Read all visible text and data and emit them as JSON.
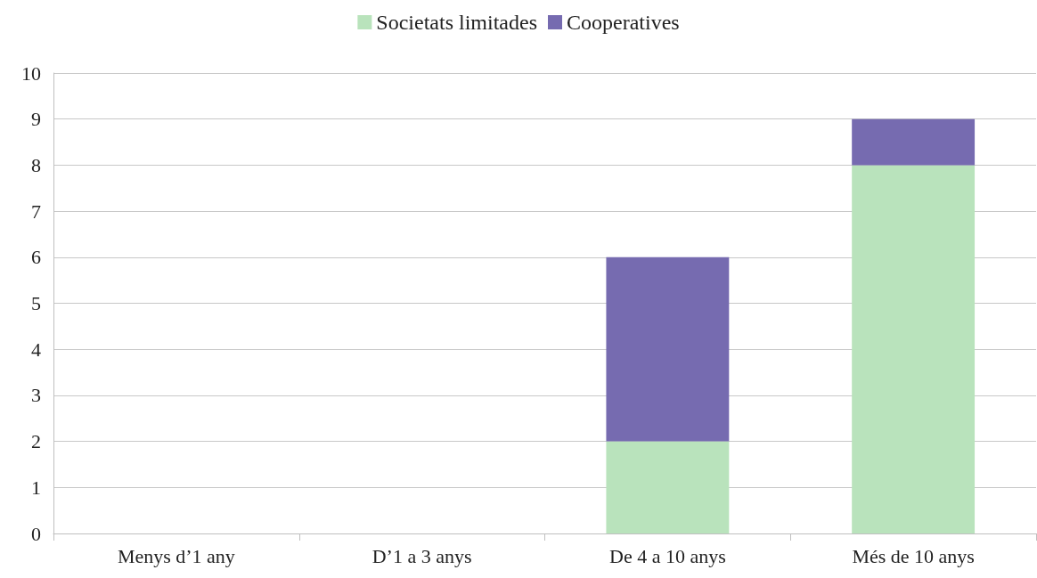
{
  "chart_data": {
    "type": "bar",
    "stacked": true,
    "categories": [
      "Menys d’1 any",
      "D’1 a 3 anys",
      "De 4 a 10 anys",
      "Més de 10 anys"
    ],
    "series": [
      {
        "name": "Societats limitades",
        "color": "#b9e3bc",
        "values": [
          0,
          0,
          2,
          8
        ]
      },
      {
        "name": "Cooperatives",
        "color": "#766bb0",
        "values": [
          0,
          0,
          4,
          1
        ]
      }
    ],
    "ylim": [
      0,
      10
    ],
    "yticks": [
      0,
      1,
      2,
      3,
      4,
      5,
      6,
      7,
      8,
      9,
      10
    ],
    "grid": "y",
    "legend": "top"
  }
}
